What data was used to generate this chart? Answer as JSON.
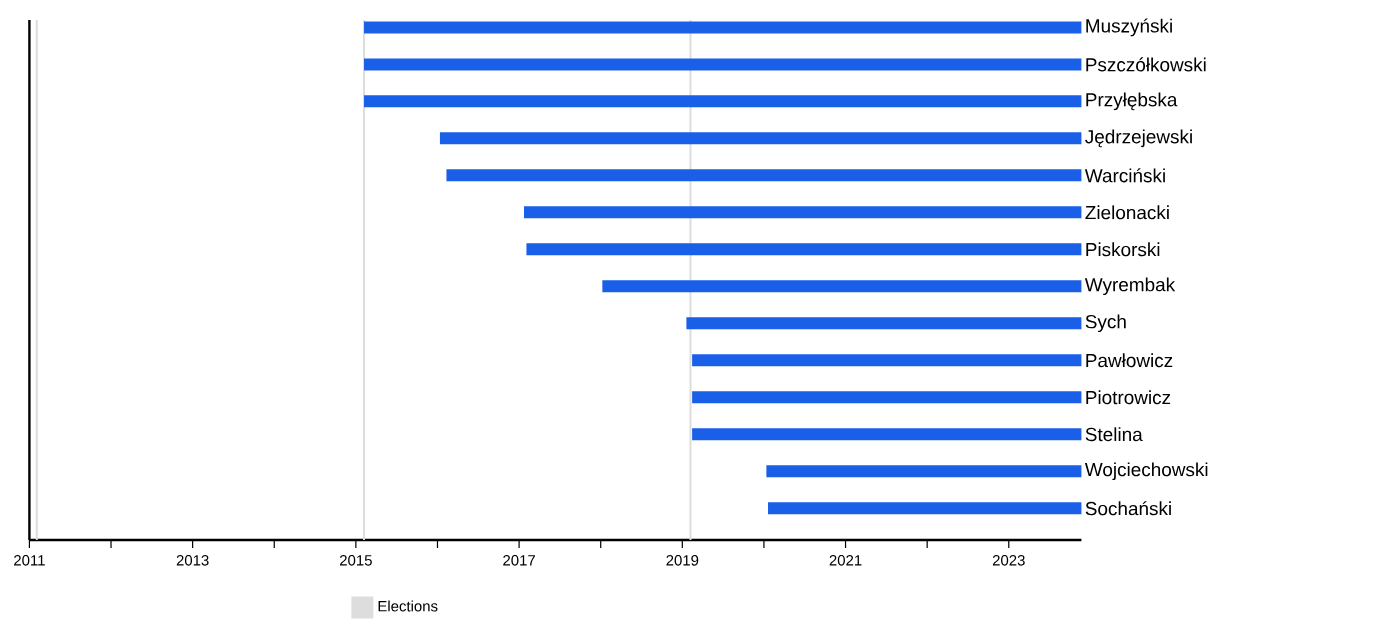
{
  "chart_data": {
    "type": "bar",
    "orientation": "horizontal",
    "categories": [
      "Muszyński",
      "Pszczółkowski",
      "Przyłębska",
      "Jędrzejewski",
      "Warciński",
      "Zielonacki",
      "Piskorski",
      "Wyrembak",
      "Sych",
      "Pawłowicz",
      "Piotrowicz",
      "Stelina",
      "Wojciechowski",
      "Sochański"
    ],
    "base": [
      2015.1,
      2015.1,
      2015.1,
      2016.03,
      2016.11,
      2017.06,
      2017.09,
      2018.02,
      2019.05,
      2019.12,
      2019.12,
      2019.12,
      2020.03,
      2020.05
    ],
    "values": [
      8.79,
      8.79,
      8.79,
      7.86,
      7.78,
      6.83,
      6.8,
      5.87,
      4.84,
      4.77,
      4.77,
      4.77,
      3.86,
      3.84
    ],
    "color": "#1a5fe8",
    "xlim": [
      2011,
      2023.89
    ],
    "xticks": [
      2011,
      {
        "value": 2012,
        "label": null
      },
      2013,
      {
        "value": 2014,
        "label": null
      },
      2015,
      {
        "value": 2016,
        "label": null
      },
      2017,
      {
        "value": 2018,
        "label": null
      },
      2019,
      {
        "value": 2020,
        "label": null
      },
      2021,
      {
        "value": 2022,
        "label": null
      },
      2023
    ],
    "ref_lines": [
      {
        "axis": "x",
        "value": 2011.09,
        "label": "Elections",
        "color": "#dddddd"
      },
      {
        "axis": "x",
        "value": 2015.1,
        "color": "#dddddd"
      },
      {
        "axis": "x",
        "value": 2019.1,
        "color": "#dddddd"
      }
    ],
    "legend": "bottom"
  }
}
